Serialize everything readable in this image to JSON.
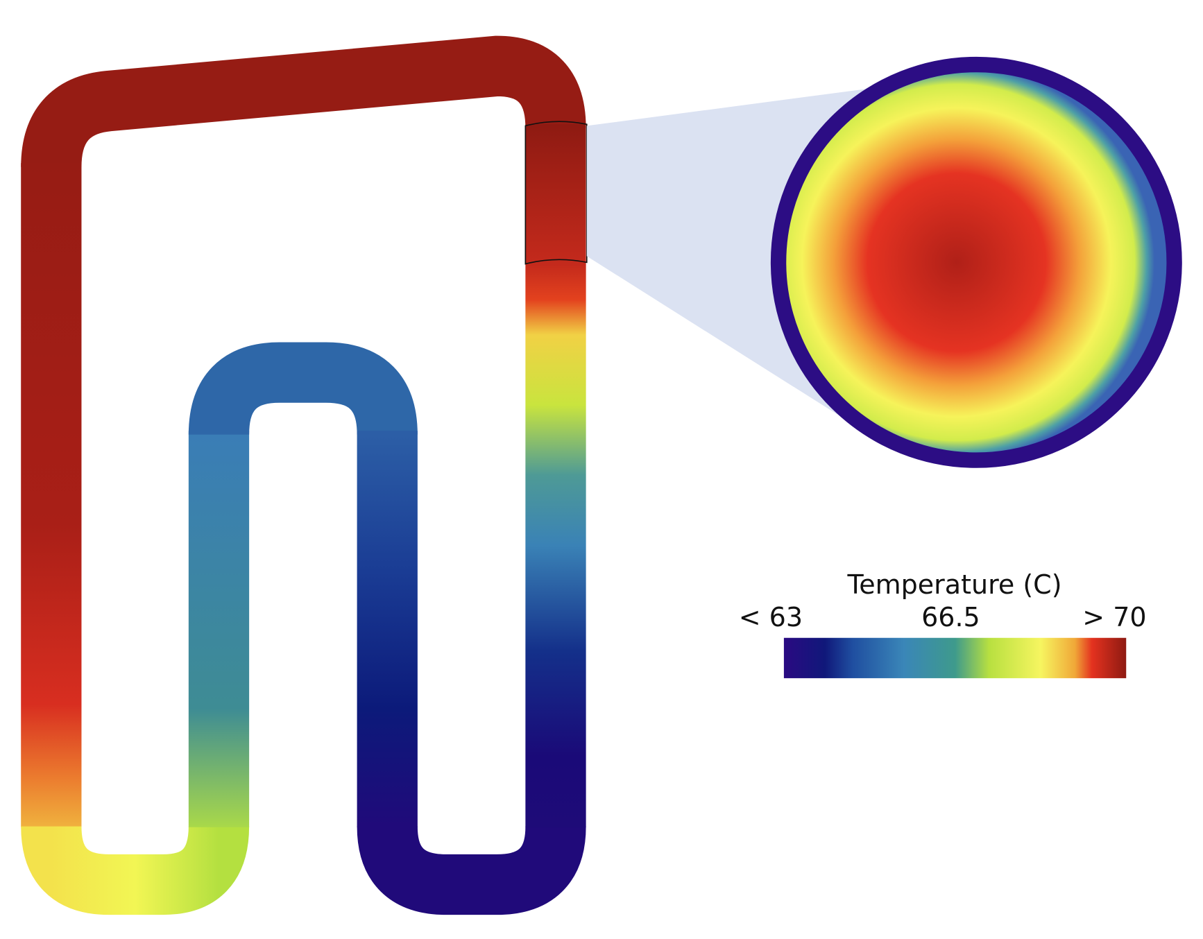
{
  "legend": {
    "title": "Temperature (C)",
    "labels": [
      "< 63",
      "66.5",
      "> 70"
    ]
  }
}
